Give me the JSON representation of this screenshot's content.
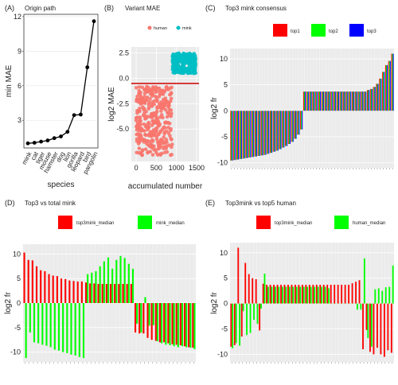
{
  "panels": {
    "A": {
      "tag": "(A)",
      "title": "Origin path"
    },
    "B": {
      "tag": "(B)",
      "title": "Variant MAE"
    },
    "C": {
      "tag": "(C)",
      "title": "Top3 mink consensus"
    },
    "D": {
      "tag": "(D)",
      "title": "Top3 vs total mink"
    },
    "E": {
      "tag": "(E)",
      "title": "Top3mink vs top5 human"
    }
  },
  "chart_data": [
    {
      "id": "A",
      "type": "line",
      "title": "Origin path",
      "xlabel": "species",
      "ylabel": "min MAE",
      "categories": [
        "mink",
        "cat",
        "tiger",
        "mouse",
        "hamster",
        "dog",
        "lion",
        "gorilla",
        "leopard",
        "bird",
        "pangolin"
      ],
      "values": [
        1.0,
        1.05,
        1.15,
        1.25,
        1.45,
        1.6,
        2.0,
        3.45,
        3.5,
        7.6,
        11.6
      ],
      "ylim": [
        0.6,
        12.2
      ],
      "yticks": [
        3,
        6,
        9,
        12
      ],
      "grid": true
    },
    {
      "id": "B",
      "type": "scatter",
      "title": "Variant MAE",
      "xlabel": "accumulated number",
      "ylabel": "log2 MAE",
      "legend": [
        "human",
        "mink"
      ],
      "legend_position": "top",
      "series": [
        {
          "name": "human",
          "color": "#F8766D",
          "x_range": [
            0,
            900
          ],
          "y_range": [
            -7.6,
            -0.8
          ],
          "n": 360
        },
        {
          "name": "mink",
          "color": "#00BFC4",
          "x_range": [
            900,
            1480
          ],
          "y_range": [
            0.5,
            2.5
          ],
          "n": 230
        }
      ],
      "hline": {
        "y": -0.5,
        "color": "#CC0000"
      },
      "xlim": [
        -120,
        1560
      ],
      "ylim": [
        -8.2,
        3.1
      ],
      "xticks": [
        0,
        500,
        1000,
        1500
      ],
      "yticks": [
        2.5,
        0.0,
        -2.5,
        -5.0
      ],
      "ytick_labels": [
        "2.5",
        "0.0",
        "-2.5",
        "-5.0"
      ],
      "grid": true
    },
    {
      "id": "C",
      "type": "bar",
      "title": "Top3 mink consensus",
      "ylabel": "log2 fr",
      "legend_position": "top",
      "series": [
        {
          "name": "top1",
          "color": "#FF0000"
        },
        {
          "name": "top2",
          "color": "#00FF00"
        },
        {
          "name": "top3",
          "color": "#0000FF"
        }
      ],
      "values": [
        -9.6,
        -9.5,
        -9.4,
        -9.3,
        -9.2,
        -9.1,
        -9.0,
        -8.9,
        -8.8,
        -8.7,
        -8.6,
        -8.5,
        -8.3,
        -8.1,
        -7.9,
        -7.7,
        -7.4,
        -7.1,
        -6.8,
        -6.4,
        -6.0,
        -5.4,
        -4.6,
        -3.6,
        3.7,
        3.7,
        3.7,
        3.7,
        3.7,
        3.7,
        3.7,
        3.7,
        3.7,
        3.7,
        3.7,
        3.7,
        3.7,
        3.7,
        3.7,
        3.7,
        3.7,
        3.7,
        3.7,
        3.7,
        3.7,
        4.0,
        4.2,
        4.6,
        5.2,
        6.2,
        7.5,
        8.8,
        9.6,
        11.0
      ],
      "ylim": [
        -11,
        12
      ],
      "yticks": [
        10,
        5,
        0,
        -5,
        -10
      ],
      "grid": true
    },
    {
      "id": "D",
      "type": "bar",
      "title": "Top3 vs total mink",
      "ylabel": "log2 fr",
      "legend_position": "top",
      "series": [
        {
          "name": "top3mink_median",
          "color": "#FF0000",
          "values": [
            10.3,
            8.8,
            8.7,
            7.5,
            6.7,
            6.5,
            5.9,
            5.6,
            5.5,
            5.0,
            4.9,
            4.6,
            4.5,
            4.4,
            4.4,
            4.2,
            4.0,
            4.0,
            3.9,
            3.9,
            3.9,
            3.9,
            3.9,
            3.9,
            3.9,
            3.9,
            3.9,
            -6.0,
            -6.2,
            -6.2,
            -7.1,
            -7.5,
            -7.7,
            -8.0,
            -8.0,
            -8.2,
            -8.4,
            -8.5,
            -8.6,
            -8.8,
            -9.0,
            -9.1
          ]
        },
        {
          "name": "mink_median",
          "color": "#00FF00",
          "values": [
            -11.2,
            -6.0,
            -8.0,
            -8.2,
            -8.5,
            -8.7,
            -9.0,
            -9.5,
            -9.7,
            -10.0,
            -10.2,
            -10.5,
            -10.7,
            -11.0,
            -11.2,
            5.9,
            6.2,
            6.5,
            7.5,
            8.5,
            9.3,
            7.0,
            8.8,
            9.6,
            9.2,
            8.0,
            7.0,
            -4.2,
            -6.0,
            1.2,
            -4.6,
            -4.5,
            -7.8,
            -8.2,
            -8.5,
            -8.6,
            -8.8,
            -9.0,
            -8.8,
            -9.0,
            -9.1,
            -9.4
          ]
        }
      ],
      "ylim": [
        -12,
        12
      ],
      "yticks": [
        10,
        5,
        0,
        -5,
        -10
      ],
      "grid": true
    },
    {
      "id": "E",
      "type": "bar",
      "title": "Top3mink vs top5 human",
      "ylabel": "log2 fr",
      "legend_position": "top",
      "series": [
        {
          "name": "top3mink_median",
          "color": "#FF0000",
          "values": [
            -8.5,
            -8.2,
            11.0,
            -6.5,
            8.0,
            5.8,
            5.0,
            4.8,
            -5.3,
            3.9,
            3.7,
            3.7,
            3.7,
            3.7,
            3.7,
            3.7,
            3.7,
            3.7,
            3.7,
            3.7,
            3.7,
            3.7,
            3.7,
            3.7,
            3.7,
            3.7,
            3.7,
            3.7,
            3.7,
            3.7,
            3.7,
            3.7,
            3.7,
            3.7,
            4.0,
            4.3,
            4.6,
            -9.0,
            -5.2,
            -9.5,
            -10.0,
            -8.7,
            -10.0,
            -10.5,
            -9.2,
            -9.7
          ]
        },
        {
          "name": "human_median",
          "color": "#00FF00",
          "values": [
            -8.8,
            -7.8,
            -8.3,
            -1.5,
            -6.2,
            -5.8,
            -3.2,
            -4.0,
            -1.0,
            5.9,
            3.3,
            3.3,
            3.3,
            3.3,
            3.3,
            3.3,
            3.3,
            3.3,
            3.3,
            3.3,
            3.3,
            3.3,
            3.3,
            3.3,
            3.3,
            3.3,
            3.3,
            3.0,
            0.0,
            0.0,
            0.0,
            0.0,
            0.0,
            0.0,
            0.0,
            -1.2,
            -1.2,
            8.9,
            -6.8,
            -8.5,
            2.8,
            3.0,
            2.5,
            3.2,
            3.3,
            7.5
          ]
        }
      ],
      "ylim": [
        -11.5,
        12
      ],
      "yticks": [
        10,
        5,
        0,
        -5,
        -10
      ],
      "grid": true
    }
  ]
}
